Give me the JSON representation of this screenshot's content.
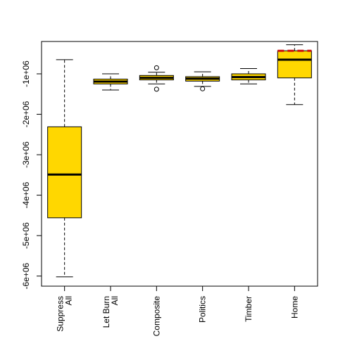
{
  "chart_data": {
    "type": "boxplot",
    "title": "",
    "xlabel": "",
    "ylabel": "",
    "categories": [
      "Suppress All",
      "Let Burn All",
      "Composite",
      "Politics",
      "Timber",
      "Home"
    ],
    "category_lines": [
      [
        "Suppress",
        "All"
      ],
      [
        "Let Burn",
        "All"
      ],
      [
        "Composite"
      ],
      [
        "Politics"
      ],
      [
        "Timber"
      ],
      [
        "Home"
      ]
    ],
    "ylim": [
      -6250000,
      -200000
    ],
    "yticks": [
      -6000000,
      -5000000,
      -4000000,
      -3000000,
      -2000000,
      -1000000
    ],
    "ytick_labels": [
      "-6e+06",
      "-5e+06",
      "-4e+06",
      "-3e+06",
      "-2e+06",
      "-1e+06"
    ],
    "box_fill": "#FFD700",
    "outlier_marker_color": "#000000",
    "highlight_color": "#CC1111",
    "boxes": [
      {
        "whisker_low": -6020000,
        "q1": -4560000,
        "median": -3490000,
        "q3": -2310000,
        "whisker_high": -650000,
        "outliers": []
      },
      {
        "whisker_low": -1400000,
        "q1": -1250000,
        "median": -1190000,
        "q3": -1130000,
        "whisker_high": -1000000,
        "outliers": []
      },
      {
        "whisker_low": -1250000,
        "q1": -1150000,
        "median": -1100000,
        "q3": -1040000,
        "whisker_high": -960000,
        "outliers": [
          -850000,
          -1380000
        ]
      },
      {
        "whisker_low": -1310000,
        "q1": -1180000,
        "median": -1120000,
        "q3": -1070000,
        "whisker_high": -950000,
        "outliers": [
          -1370000
        ]
      },
      {
        "whisker_low": -1250000,
        "q1": -1150000,
        "median": -1080000,
        "q3": -1000000,
        "whisker_high": -870000,
        "outliers": []
      },
      {
        "whisker_low": -1760000,
        "q1": -1100000,
        "median": -650000,
        "q3": -430000,
        "whisker_high": -280000,
        "outliers": [],
        "highlight_values": [
          -430000
        ]
      }
    ]
  }
}
